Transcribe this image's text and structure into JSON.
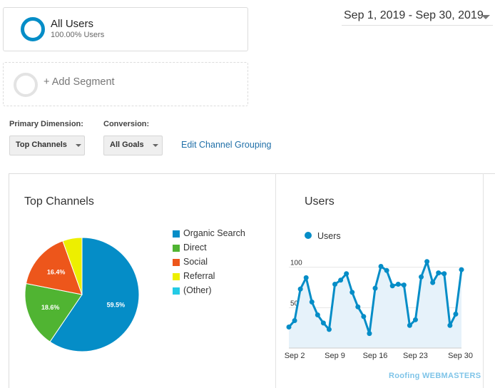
{
  "segments": {
    "all_users": {
      "title": "All Users",
      "subtitle": "100.00% Users"
    },
    "add_segment": {
      "label": "+ Add Segment"
    }
  },
  "date_range": "Sep 1, 2019 - Sep 30, 2019",
  "controls": {
    "primary_dimension_label": "Primary Dimension:",
    "primary_dimension_value": "Top Channels",
    "conversion_label": "Conversion:",
    "conversion_value": "All Goals",
    "edit_link": "Edit Channel Grouping"
  },
  "colors": {
    "organic": "#058dc7",
    "direct": "#50b432",
    "social": "#ed561b",
    "referral": "#edef00",
    "other": "#24cbe5",
    "line": "#058dc7"
  },
  "chart_data": [
    {
      "type": "pie",
      "title": "Top Channels",
      "categories": [
        "Organic Search",
        "Direct",
        "Social",
        "Referral",
        "(Other)"
      ],
      "values": [
        59.5,
        18.6,
        16.4,
        5.5,
        0.0
      ],
      "data_labels": [
        "59.5%",
        "18.6%",
        "16.4%",
        "",
        ""
      ],
      "legend_position": "right"
    },
    {
      "type": "area",
      "title": "Users",
      "series": [
        {
          "name": "Users",
          "values": [
            26,
            34,
            73,
            87,
            57,
            41,
            31,
            23,
            79,
            84,
            92,
            69,
            51,
            39,
            18,
            74,
            101,
            96,
            77,
            79,
            78,
            28,
            35,
            88,
            107,
            81,
            93,
            92,
            28,
            42,
            97
          ]
        }
      ],
      "x_tick_labels": [
        "Sep 2",
        "Sep 9",
        "Sep 16",
        "Sep 23",
        "Sep 30"
      ],
      "y_tick_labels": [
        "50",
        "100"
      ],
      "grid": true
    }
  ],
  "watermark": "Roofing WEBMASTERS"
}
